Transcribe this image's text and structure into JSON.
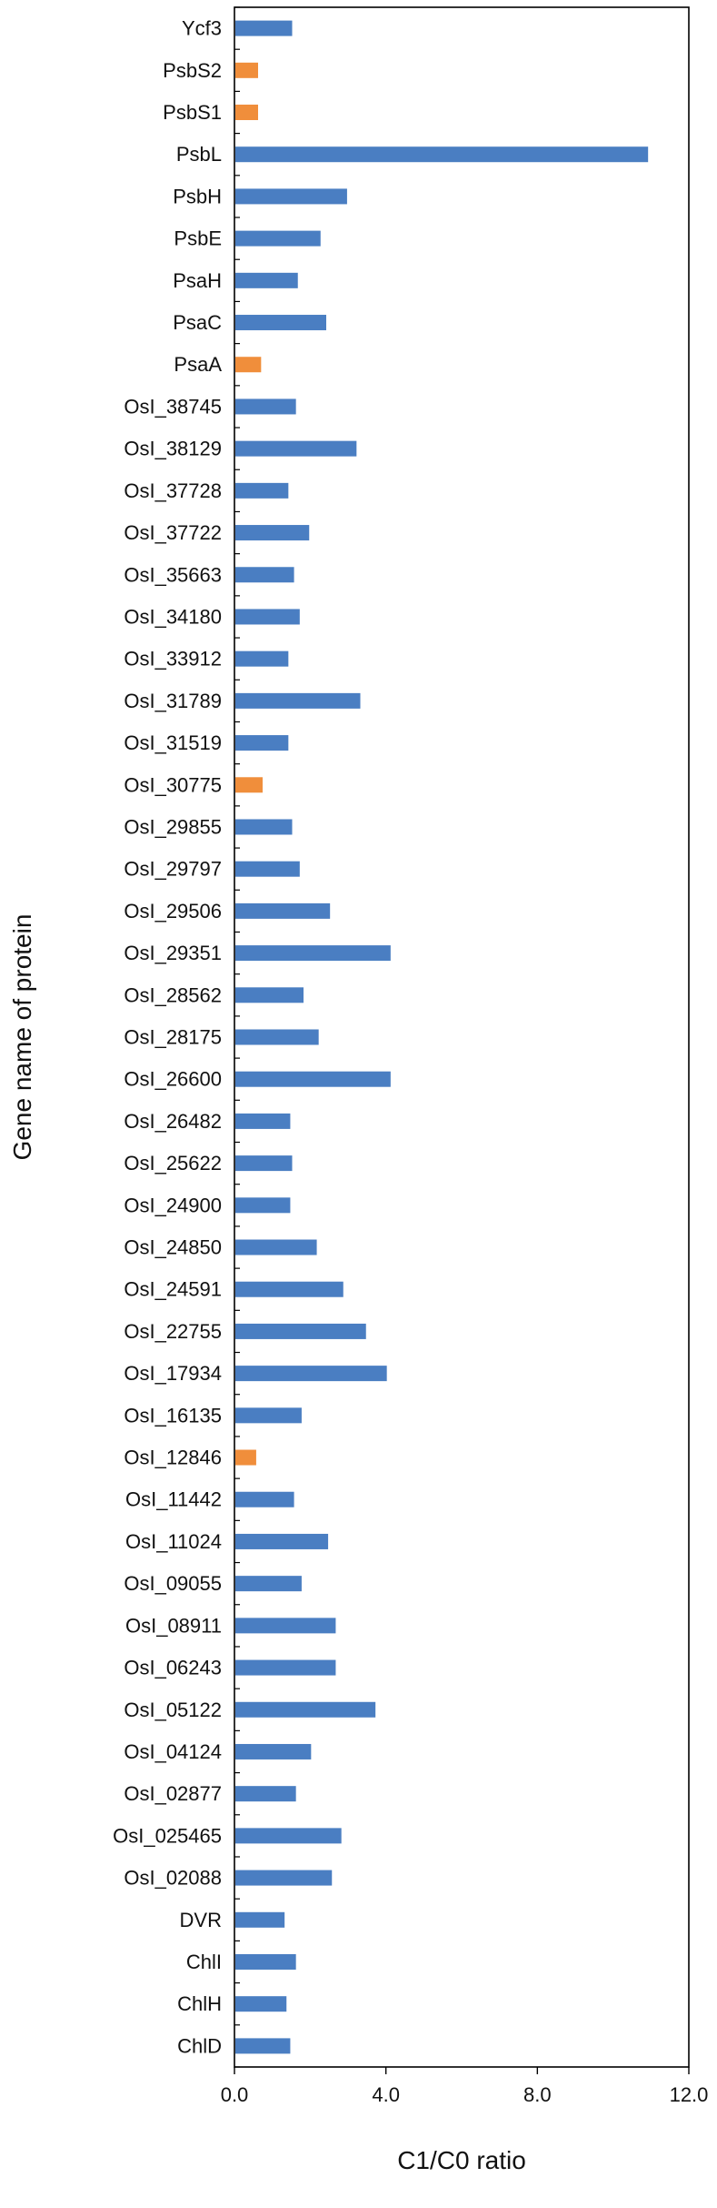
{
  "chart_data": {
    "type": "bar",
    "orientation": "horizontal",
    "categories": [
      "Ycf3",
      "PsbS2",
      "PsbS1",
      "PsbL",
      "PsbH",
      "PsbE",
      "PsaH",
      "PsaC",
      "PsaA",
      "OsI_38745",
      "OsI_38129",
      "OsI_37728",
      "OsI_37722",
      "OsI_35663",
      "OsI_34180",
      "OsI_33912",
      "OsI_31789",
      "OsI_31519",
      "OsI_30775",
      "OsI_29855",
      "OsI_29797",
      "OsI_29506",
      "OsI_29351",
      "OsI_28562",
      "OsI_28175",
      "OsI_26600",
      "OsI_26482",
      "OsI_25622",
      "OsI_24900",
      "OsI_24850",
      "OsI_24591",
      "OsI_22755",
      "OsI_17934",
      "OsI_16135",
      "OsI_12846",
      "OsI_11442",
      "OsI_11024",
      "OsI_09055",
      "OsI_08911",
      "OsI_06243",
      "OsI_05122",
      "OsI_04124",
      "OsI_02877",
      "OsI_025465",
      "OsI_02088",
      "DVR",
      "ChlI",
      "ChlH",
      "ChlD"
    ],
    "values": [
      1.5,
      0.6,
      0.6,
      10.9,
      2.95,
      2.25,
      1.65,
      2.4,
      0.68,
      1.6,
      3.2,
      1.4,
      1.95,
      1.55,
      1.7,
      1.4,
      3.3,
      1.4,
      0.72,
      1.5,
      1.7,
      2.5,
      4.1,
      1.8,
      2.2,
      4.1,
      1.45,
      1.5,
      1.45,
      2.15,
      2.85,
      3.45,
      4.0,
      1.75,
      0.55,
      1.55,
      2.45,
      1.75,
      2.65,
      2.65,
      3.7,
      2.0,
      1.6,
      2.8,
      2.55,
      1.3,
      1.6,
      1.35,
      1.45
    ],
    "highlighted": [
      "PsbS2",
      "PsbS1",
      "PsaA",
      "OsI_30775",
      "OsI_12846"
    ],
    "colors": {
      "default": "#4a7ec2",
      "highlight": "#f08e3b",
      "axis": "#000000",
      "text": "#111111"
    },
    "xlabel": "C1/C0 ratio",
    "ylabel": "Gene name of protein",
    "xlim": [
      0,
      12
    ],
    "xticks": [
      0,
      4,
      8,
      12
    ],
    "xtick_labels": [
      "0.0",
      "4.0",
      "8.0",
      "12.0"
    ],
    "grid": false,
    "legend": "none"
  }
}
